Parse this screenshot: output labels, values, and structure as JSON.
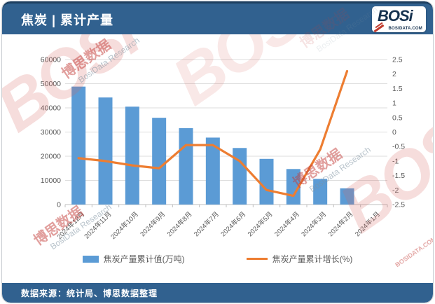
{
  "header": {
    "title": "焦炭 | 累计产量",
    "logo": {
      "brand": "BOSi",
      "domain": "BOSIDATA.COM"
    }
  },
  "footer": {
    "source": "数据来源：统计局、博思数据整理"
  },
  "legend": [
    {
      "label": "焦炭产量累计值(万吨)",
      "type": "bar",
      "color": "#5b9bd5"
    },
    {
      "label": "焦炭产量累计增长(%)",
      "type": "line",
      "color": "#ed7d31"
    }
  ],
  "watermarks": {
    "brand_large": "BOSi",
    "brand_cn": "博思数据",
    "brand_en": "BosiData Research",
    "brand_url": "BOSIDATA.COM"
  },
  "colors": {
    "header_blue": "#31618f",
    "bar_blue": "#5b9bd5",
    "line_orange": "#ed7d31",
    "grid_gray": "#dcdcdc",
    "axis_gray": "#bfbfbf",
    "label_gray": "#595959"
  },
  "chart_data": {
    "type": "bar+line",
    "title": "焦炭 | 累计产量",
    "categories": [
      "2024年12月",
      "2024年11月",
      "2024年10月",
      "2024年9月",
      "2024年8月",
      "2024年7月",
      "2024年6月",
      "2024年5月",
      "2024年4月",
      "2024年3月",
      "2024年2月",
      "2024年1月"
    ],
    "series": [
      {
        "name": "焦炭产量累计值(万吨)",
        "type": "bar",
        "axis": "left",
        "color": "#5b9bd5",
        "values": [
          48800,
          44300,
          40500,
          35900,
          31600,
          27700,
          23400,
          18900,
          14700,
          10600,
          6700,
          null
        ]
      },
      {
        "name": "焦炭产量累计增长(%)",
        "type": "line",
        "axis": "right",
        "color": "#ed7d31",
        "values": [
          -0.9,
          -1.0,
          -1.15,
          -1.25,
          -0.45,
          -0.45,
          -1.0,
          -2.0,
          -2.2,
          -0.6,
          2.1,
          null
        ]
      }
    ],
    "left_axis": {
      "min": 0,
      "max": 60000,
      "step": 10000,
      "ticks": [
        "0",
        "10000",
        "20000",
        "30000",
        "40000",
        "50000",
        "60000"
      ]
    },
    "right_axis": {
      "min": -2.5,
      "max": 2.5,
      "step": 0.5,
      "ticks": [
        "-2.5",
        "-2",
        "-1.5",
        "-1",
        "-0.5",
        "0",
        "0.5",
        "1",
        "1.5",
        "2",
        "2.5"
      ]
    },
    "grid": true,
    "legend_position": "bottom",
    "x_label_rotation": -45
  }
}
